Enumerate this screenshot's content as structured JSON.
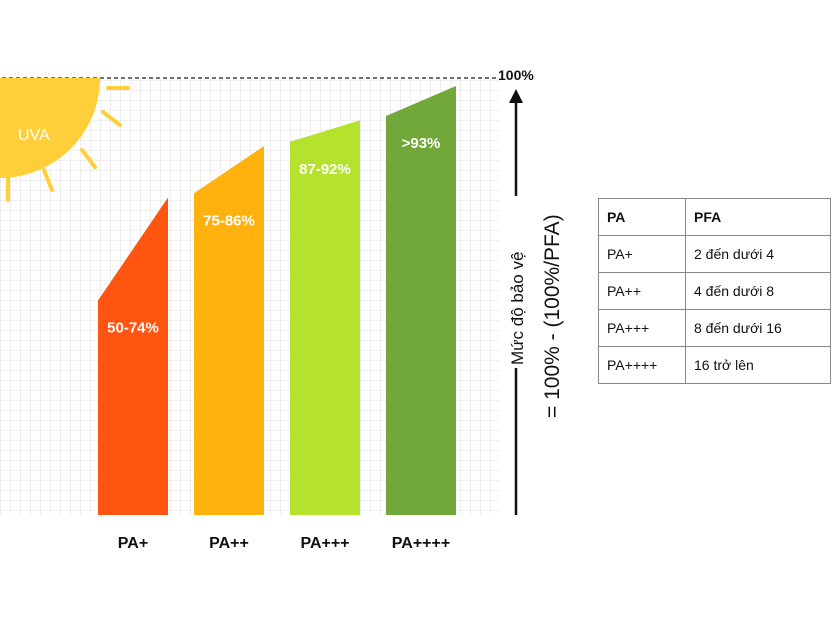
{
  "chart_data": {
    "type": "bar",
    "categories": [
      "PA+",
      "PA++",
      "PA+++",
      "PA++++"
    ],
    "series": [
      {
        "value_labels": [
          "50-74%",
          "75-86%",
          "87-92%",
          ">93%"
        ],
        "low": [
          50,
          75,
          87,
          93
        ],
        "high": [
          74,
          86,
          92,
          100
        ],
        "colors": [
          "#ff5511",
          "#ffb10e",
          "#b5e22c",
          "#72a83a"
        ]
      }
    ],
    "ymax_label": "100%",
    "ylabel_line1": "Mức độ bảo vệ",
    "ylabel_line2": "= 100% - (100%/PFA)",
    "sun_label": "UVA",
    "sun_color": "#ffcf3a",
    "grid": true
  },
  "table": {
    "headers": [
      "PA",
      "PFA"
    ],
    "rows": [
      [
        "PA+",
        "2 đến dưới 4"
      ],
      [
        "PA++",
        "4 đến dưới 8"
      ],
      [
        "PA+++",
        "8 đến dưới 16"
      ],
      [
        "PA++++",
        "16 trở lên"
      ]
    ]
  }
}
